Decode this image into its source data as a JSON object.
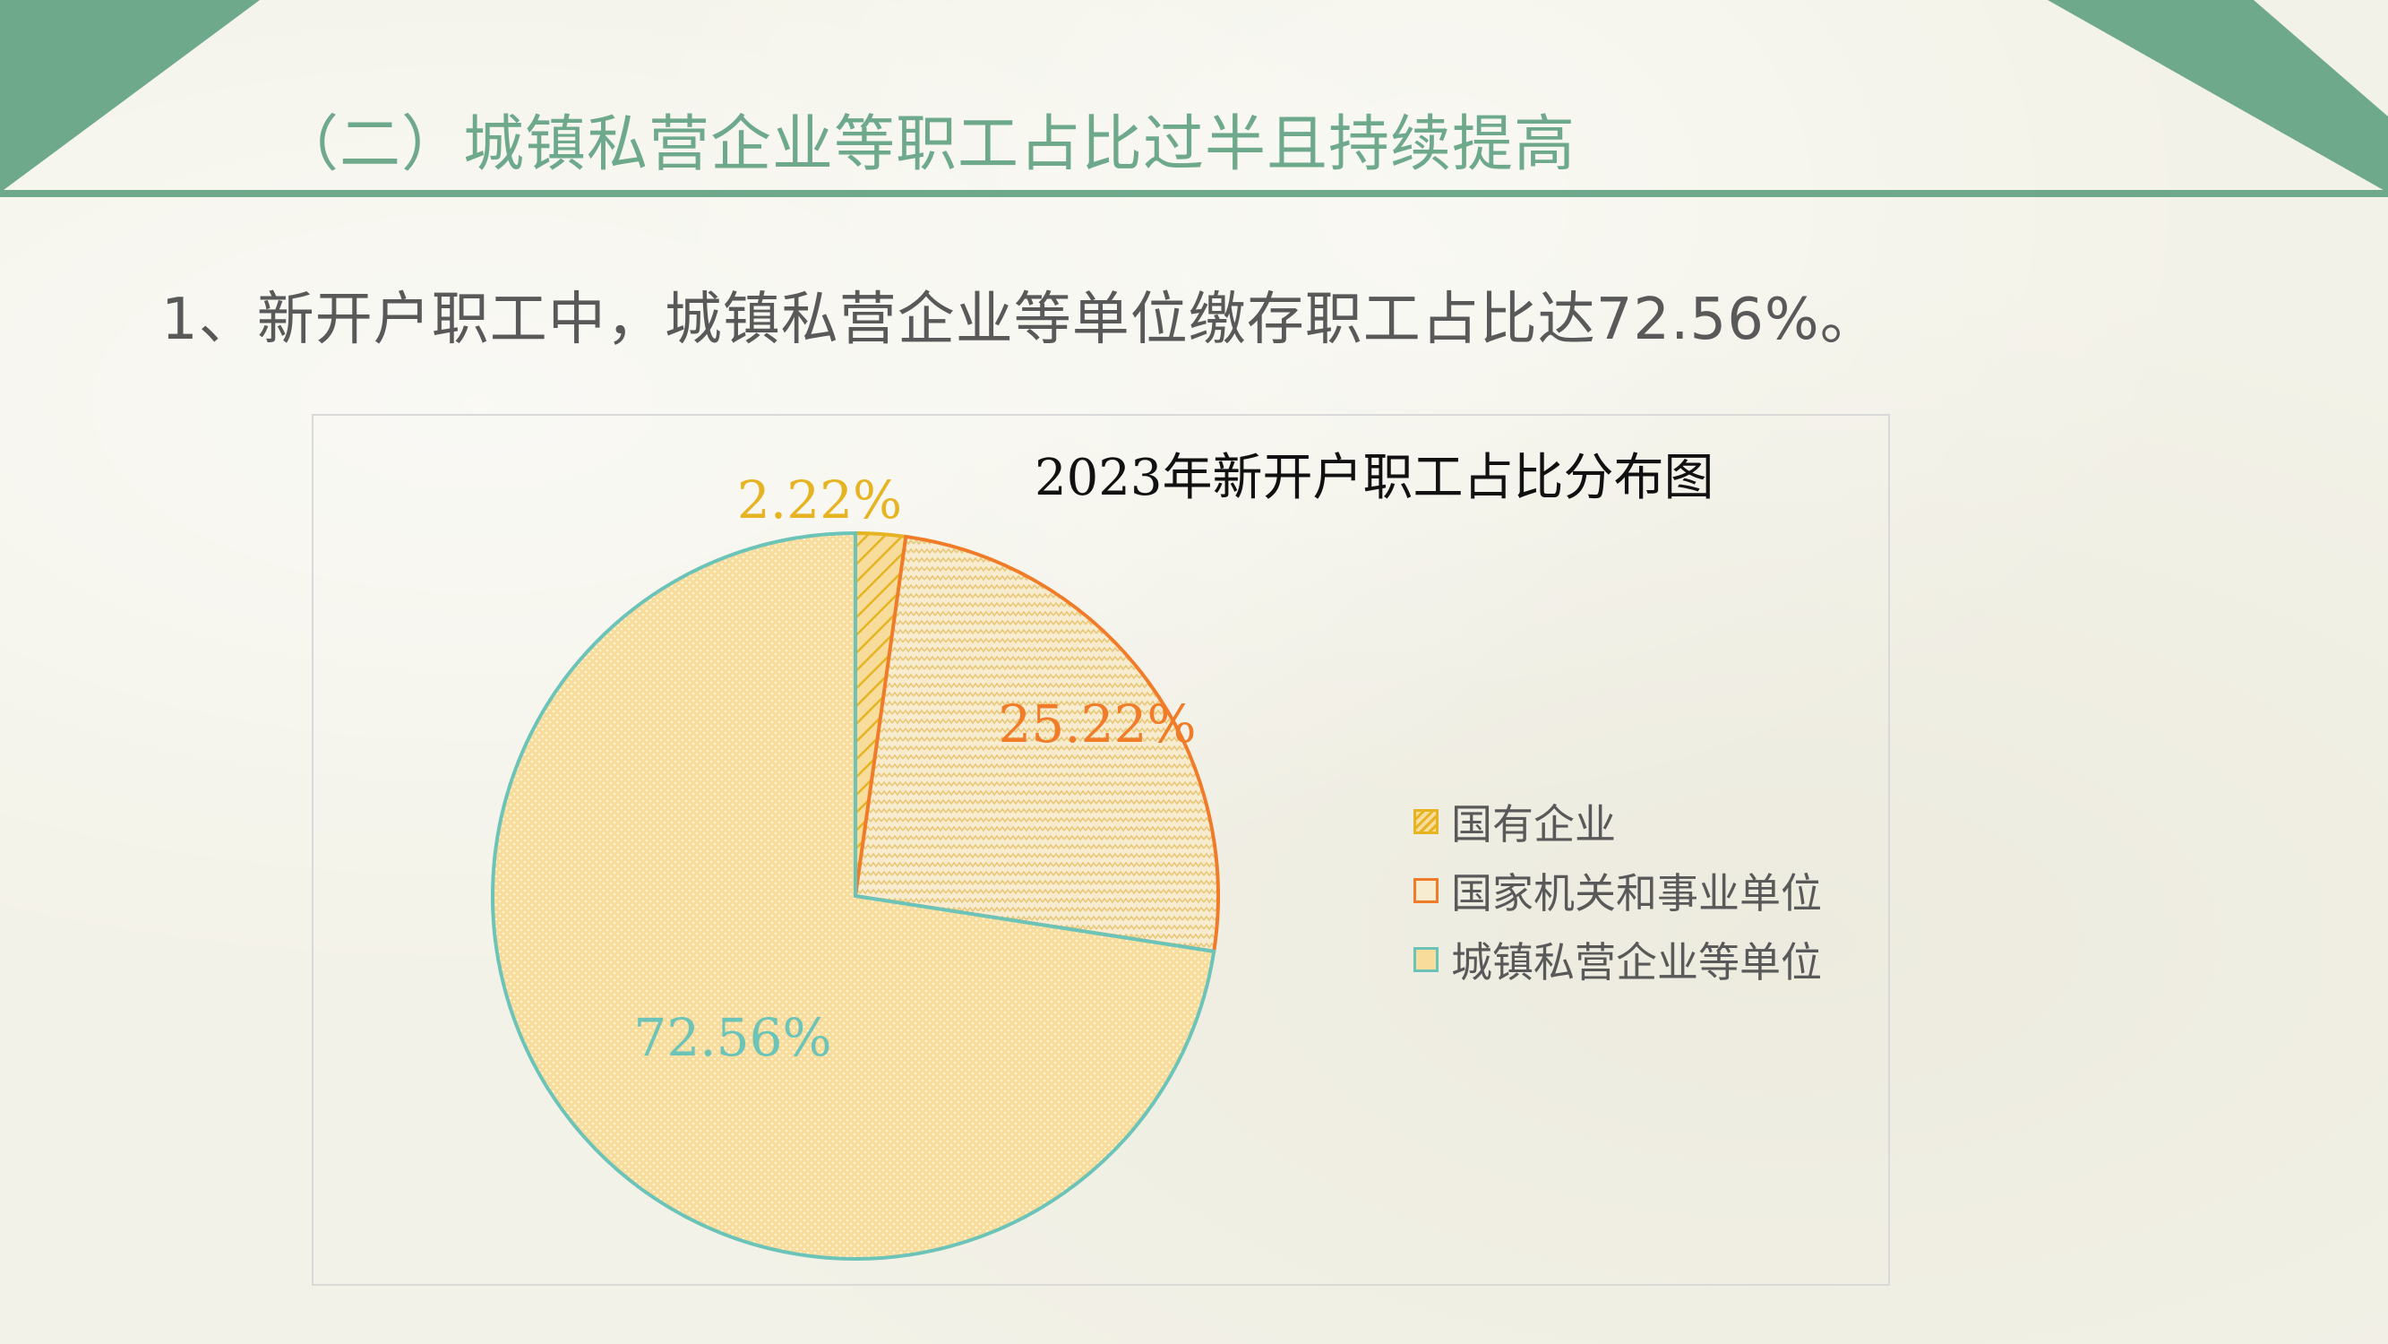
{
  "header": {
    "heading": "（二）城镇私营企业等职工占比过半且持续提高",
    "subheading": "1、新开户职工中，城镇私营企业等单位缴存职工占比达72.56%。"
  },
  "colors": {
    "accent": "#6fa98c",
    "gold": "#e6b422",
    "orange": "#f07c2a",
    "teal": "#6cc3b8",
    "fill": "#f7dc9c"
  },
  "chart_data": {
    "type": "pie",
    "title": "2023年新开户职工占比分布图",
    "legend_position": "right",
    "slices": [
      {
        "name": "国有企业",
        "value": 2.22,
        "label": "2.22%",
        "color": "#e6b422",
        "pattern": "diagonal-hatch"
      },
      {
        "name": "国家机关和事业单位",
        "value": 25.22,
        "label": "25.22%",
        "color": "#f07c2a",
        "pattern": "zigzag"
      },
      {
        "name": "城镇私营企业等单位",
        "value": 72.56,
        "label": "72.56%",
        "color": "#6cc3b8",
        "pattern": "dots"
      }
    ]
  }
}
